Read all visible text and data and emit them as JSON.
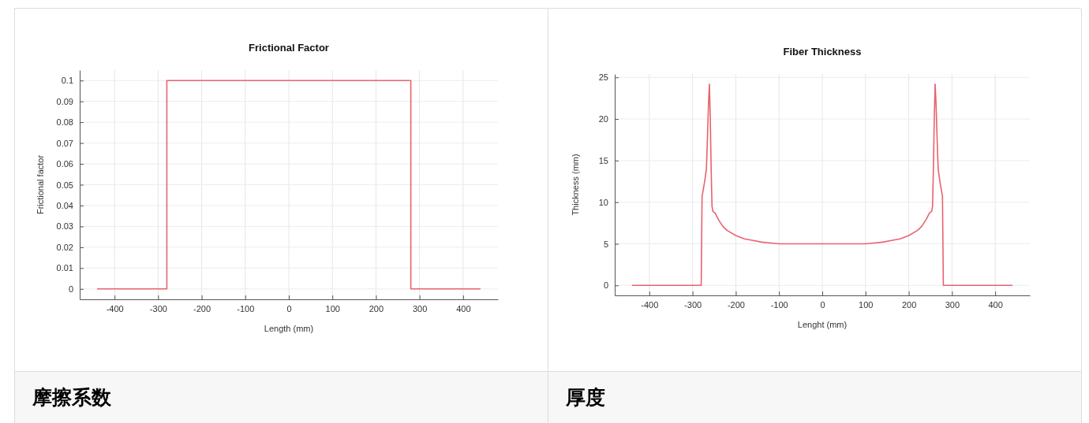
{
  "chart_data": [
    {
      "type": "line",
      "title": "Frictional Factor",
      "xlabel": "Length (mm)",
      "ylabel": "Frictional factor",
      "annotations": [
        "摩擦系数"
      ],
      "xlim": [
        -480,
        480
      ],
      "ylim": [
        -0.005,
        0.105
      ],
      "xticks": [
        -400,
        -300,
        -200,
        -100,
        0,
        100,
        200,
        300,
        400
      ],
      "yticks": [
        0,
        0.01,
        0.02,
        0.03,
        0.04,
        0.05,
        0.06,
        0.07,
        0.08,
        0.09,
        0.1
      ],
      "grid": true,
      "marker": "none",
      "line_style": "solid",
      "series": [
        {
          "color": "#e8626e",
          "x": [
            -440,
            -280,
            -280,
            280,
            280,
            440
          ],
          "values": [
            0,
            0,
            0.1,
            0.1,
            0,
            0
          ]
        }
      ]
    },
    {
      "type": "line",
      "title": "Fiber Thickness",
      "xlabel": "Lenght (mm)",
      "ylabel": "Thickness (mm)",
      "annotations": [
        "厚度"
      ],
      "xlim": [
        -480,
        480
      ],
      "ylim": [
        -1.2,
        25.4
      ],
      "xticks": [
        -400,
        -300,
        -200,
        -100,
        0,
        100,
        200,
        300,
        400
      ],
      "yticks": [
        0,
        5,
        10,
        15,
        20,
        25
      ],
      "grid": true,
      "marker": "none",
      "line_style": "solid",
      "series": [
        {
          "color": "#e8626e",
          "x": [
            -440,
            -280,
            -278,
            -272,
            -268,
            -266,
            -263,
            -261,
            -259,
            -257,
            -255,
            -253,
            -248,
            -240,
            -230,
            -220,
            -200,
            -180,
            -160,
            -140,
            -120,
            -100,
            100,
            120,
            140,
            160,
            180,
            200,
            220,
            230,
            240,
            248,
            253,
            255,
            257,
            259,
            261,
            263,
            266,
            268,
            272,
            278,
            280,
            440
          ],
          "values": [
            0,
            0,
            10.7,
            12.5,
            14,
            17,
            22,
            24.2,
            20,
            14,
            9.5,
            8.9,
            8.7,
            7.9,
            7.1,
            6.6,
            6.0,
            5.6,
            5.4,
            5.2,
            5.1,
            5,
            5,
            5.1,
            5.2,
            5.4,
            5.6,
            6.0,
            6.6,
            7.1,
            7.9,
            8.7,
            8.9,
            9.5,
            14,
            20,
            24.2,
            22,
            17,
            14,
            12.5,
            10.7,
            0,
            0
          ]
        }
      ]
    }
  ]
}
